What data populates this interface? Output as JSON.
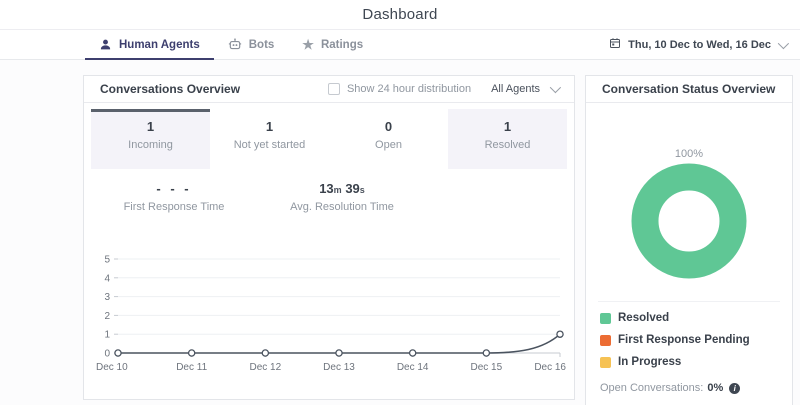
{
  "header": {
    "title": "Dashboard"
  },
  "tabs": [
    {
      "label": "Human Agents",
      "icon": "person-icon",
      "active": true
    },
    {
      "label": "Bots",
      "icon": "bot-icon",
      "active": false
    },
    {
      "label": "Ratings",
      "icon": "star-icon",
      "active": false
    }
  ],
  "date_range": {
    "icon": "calendar-icon",
    "label": "Thu, 10 Dec to Wed, 16 Dec"
  },
  "conversations_overview": {
    "title": "Conversations Overview",
    "checkbox_label": "Show 24 hour distribution",
    "checkbox_checked": false,
    "agents_filter_value": "All Agents",
    "stats": [
      {
        "value": "1",
        "label": "Incoming"
      },
      {
        "value": "1",
        "label": "Not yet started"
      },
      {
        "value": "0",
        "label": "Open"
      },
      {
        "value": "1",
        "label": "Resolved"
      }
    ],
    "metrics": {
      "first_response": {
        "value": "- - -",
        "label": "First Response Time"
      },
      "avg_resolution": {
        "minutes": "13",
        "minutes_unit": "m",
        "seconds": "39",
        "seconds_unit": "s",
        "label": "Avg. Resolution Time"
      }
    }
  },
  "status_overview": {
    "title": "Conversation Status Overview",
    "donut_label": "100%",
    "legend": [
      {
        "label": "Resolved",
        "color": "#5fc795"
      },
      {
        "label": "First Response Pending",
        "color": "#ec6c33"
      },
      {
        "label": "In Progress",
        "color": "#f6c254"
      }
    ],
    "open_conversations_label": "Open Conversations:",
    "open_conversations_value": "0%"
  },
  "chart_data": [
    {
      "type": "line",
      "title": "Conversations Overview trend",
      "x": [
        "Dec 10",
        "Dec 11",
        "Dec 12",
        "Dec 13",
        "Dec 14",
        "Dec 15",
        "Dec 16"
      ],
      "series": [
        {
          "name": "Incoming",
          "values": [
            0,
            0,
            0,
            0,
            0,
            0,
            1
          ]
        }
      ],
      "ylim": [
        0,
        5
      ],
      "yticks": [
        0,
        1,
        2,
        3,
        4,
        5
      ],
      "grid": true,
      "legend_position": "none",
      "line_color": "#4a535f",
      "marker": "open-circle"
    },
    {
      "type": "pie",
      "title": "Conversation Status Overview",
      "labels": [
        "Resolved",
        "First Response Pending",
        "In Progress"
      ],
      "values": [
        100,
        0,
        0
      ],
      "colors": [
        "#5fc795",
        "#ec6c33",
        "#f6c254"
      ],
      "donut": true,
      "center_label": "100%"
    }
  ]
}
